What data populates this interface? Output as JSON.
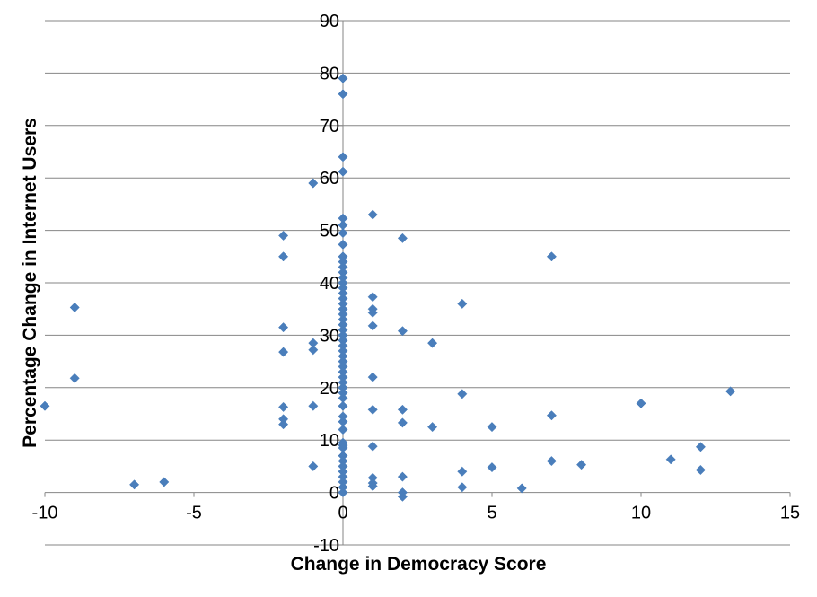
{
  "chart_data": {
    "type": "scatter",
    "title": "",
    "xlabel": "Change in Democracy Score",
    "ylabel": "Percentage Change in Internet Users",
    "xlim": [
      -10,
      15
    ],
    "ylim": [
      -10,
      90
    ],
    "x_ticks": [
      -10,
      -5,
      0,
      5,
      10,
      15
    ],
    "y_ticks": [
      -10,
      0,
      10,
      20,
      30,
      40,
      50,
      60,
      70,
      80,
      90
    ],
    "grid": "horizontal major gridlines",
    "legend": "none",
    "marker": "diamond",
    "colors": {
      "marker": "#4a7ebb",
      "grid": "#868686",
      "axis": "#868686"
    },
    "points": [
      [
        -10,
        16.5
      ],
      [
        -9,
        35.3
      ],
      [
        -9,
        21.8
      ],
      [
        -7,
        1.5
      ],
      [
        -6,
        2.0
      ],
      [
        -2,
        49.0
      ],
      [
        -2,
        45.0
      ],
      [
        -2,
        31.5
      ],
      [
        -2,
        26.8
      ],
      [
        -2,
        16.3
      ],
      [
        -2,
        14.0
      ],
      [
        -2,
        13.0
      ],
      [
        -1,
        59.0
      ],
      [
        -1,
        28.5
      ],
      [
        -1,
        27.2
      ],
      [
        -1,
        16.5
      ],
      [
        -1,
        5.0
      ],
      [
        0,
        79.0
      ],
      [
        0,
        76.0
      ],
      [
        0,
        64.0
      ],
      [
        0,
        61.2
      ],
      [
        0,
        52.3
      ],
      [
        0,
        51.0
      ],
      [
        0,
        49.5
      ],
      [
        0,
        47.3
      ],
      [
        0,
        45.0
      ],
      [
        0,
        44.0
      ],
      [
        0,
        43.0
      ],
      [
        0,
        42.0
      ],
      [
        0,
        41.0
      ],
      [
        0,
        40.0
      ],
      [
        0,
        39.0
      ],
      [
        0,
        38.0
      ],
      [
        0,
        37.0
      ],
      [
        0,
        36.0
      ],
      [
        0,
        35.0
      ],
      [
        0,
        34.0
      ],
      [
        0,
        33.0
      ],
      [
        0,
        32.0
      ],
      [
        0,
        31.0
      ],
      [
        0,
        30.0
      ],
      [
        0,
        29.0
      ],
      [
        0,
        28.0
      ],
      [
        0,
        27.0
      ],
      [
        0,
        26.0
      ],
      [
        0,
        25.0
      ],
      [
        0,
        24.0
      ],
      [
        0,
        23.0
      ],
      [
        0,
        22.0
      ],
      [
        0,
        21.0
      ],
      [
        0,
        20.0
      ],
      [
        0,
        19.0
      ],
      [
        0,
        18.0
      ],
      [
        0,
        16.5
      ],
      [
        0,
        14.5
      ],
      [
        0,
        13.5
      ],
      [
        0,
        12.0
      ],
      [
        0,
        9.5
      ],
      [
        0,
        9.0
      ],
      [
        0,
        8.5
      ],
      [
        0,
        7.0
      ],
      [
        0,
        6.0
      ],
      [
        0,
        5.0
      ],
      [
        0,
        4.0
      ],
      [
        0,
        3.0
      ],
      [
        0,
        2.0
      ],
      [
        0,
        1.0
      ],
      [
        0,
        0.0
      ],
      [
        1,
        53.0
      ],
      [
        1,
        37.3
      ],
      [
        1,
        35.0
      ],
      [
        1,
        34.3
      ],
      [
        1,
        31.8
      ],
      [
        1,
        22.0
      ],
      [
        1,
        15.8
      ],
      [
        1,
        8.8
      ],
      [
        1,
        2.8
      ],
      [
        1,
        1.8
      ],
      [
        1,
        1.2
      ],
      [
        2,
        48.5
      ],
      [
        2,
        30.8
      ],
      [
        2,
        15.8
      ],
      [
        2,
        13.3
      ],
      [
        2,
        3.0
      ],
      [
        2,
        0.0
      ],
      [
        2,
        -0.8
      ],
      [
        3,
        28.5
      ],
      [
        3,
        12.5
      ],
      [
        4,
        36.0
      ],
      [
        4,
        18.8
      ],
      [
        4,
        4.0
      ],
      [
        4,
        1.0
      ],
      [
        5,
        12.5
      ],
      [
        5,
        4.8
      ],
      [
        6,
        0.8
      ],
      [
        7,
        45.0
      ],
      [
        7,
        14.7
      ],
      [
        7,
        6.0
      ],
      [
        8,
        5.3
      ],
      [
        10,
        17.0
      ],
      [
        11,
        6.3
      ],
      [
        12,
        8.7
      ],
      [
        12,
        4.3
      ],
      [
        13,
        19.3
      ]
    ]
  }
}
